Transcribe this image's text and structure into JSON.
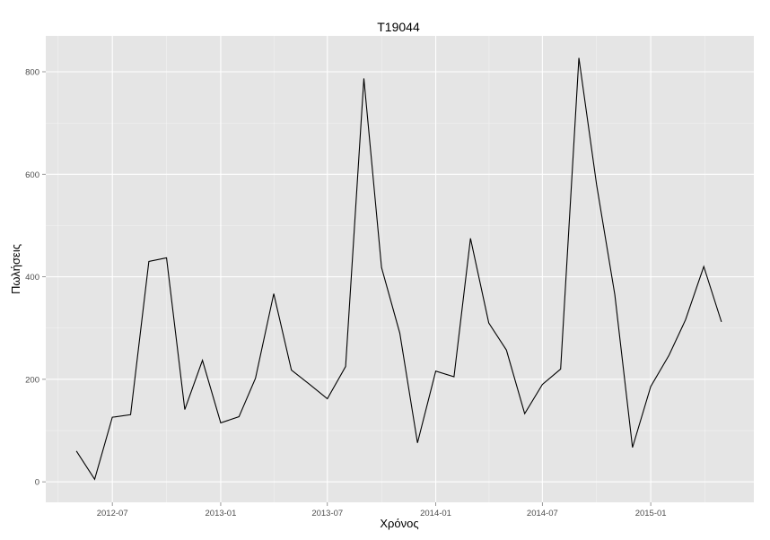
{
  "chart_data": {
    "type": "line",
    "title": "T19044",
    "xlabel": "Χρόνος",
    "ylabel": "Πωλήσεις",
    "x": [
      "2012-05",
      "2012-06",
      "2012-07",
      "2012-08",
      "2012-09",
      "2012-10",
      "2012-11",
      "2012-12",
      "2013-01",
      "2013-02",
      "2013-03",
      "2013-04",
      "2013-05",
      "2013-06",
      "2013-07",
      "2013-08",
      "2013-09",
      "2013-10",
      "2013-11",
      "2013-12",
      "2014-01",
      "2014-02",
      "2014-03",
      "2014-04",
      "2014-05",
      "2014-06",
      "2014-07",
      "2014-08",
      "2014-09",
      "2014-10",
      "2014-11",
      "2014-12",
      "2015-01",
      "2015-02",
      "2015-03",
      "2015-04",
      "2015-05"
    ],
    "series": [
      {
        "values": [
          60,
          5,
          126,
          131,
          430,
          437,
          141,
          237,
          115,
          127,
          202,
          367,
          218,
          190,
          162,
          225,
          787,
          418,
          290,
          76,
          216,
          205,
          475,
          310,
          257,
          133,
          190,
          220,
          827,
          580,
          365,
          67,
          186,
          247,
          316,
          420,
          312
        ],
        "color": "#000000"
      }
    ],
    "x_ticks": [
      "2012-07",
      "2013-01",
      "2013-07",
      "2014-01",
      "2014-07",
      "2015-01"
    ],
    "y_ticks": [
      0,
      200,
      400,
      600,
      800
    ],
    "xlim": [
      "2012-03-10",
      "2015-06-25"
    ],
    "ylim": [
      -40,
      870
    ],
    "grid": true,
    "panel_background": "#e5e5e5",
    "grid_color": "#ffffff"
  }
}
